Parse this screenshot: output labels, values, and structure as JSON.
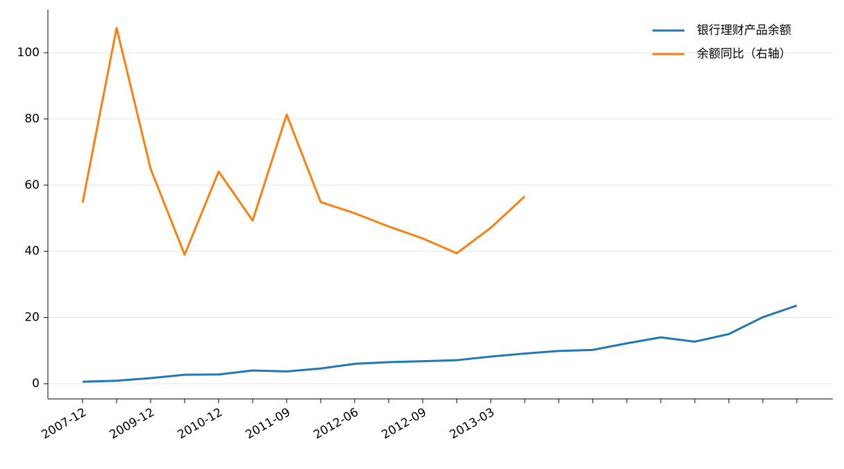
{
  "chart_data": {
    "type": "line",
    "categories": [
      "2007-12",
      null,
      "2009-12",
      null,
      "2010-12",
      null,
      "2011-09",
      null,
      "2012-06",
      null,
      "2012-09",
      null,
      "2013-03",
      null,
      null,
      null,
      null,
      null,
      null,
      null,
      null,
      null
    ],
    "series": [
      {
        "name": "银行理财产品余额",
        "color": "#1f77b4",
        "values": [
          0.6,
          0.9,
          1.7,
          2.7,
          2.8,
          4.0,
          3.7,
          4.6,
          6.0,
          6.5,
          6.8,
          7.1,
          8.2,
          9.1,
          9.9,
          10.2,
          12.2,
          14.0,
          12.7,
          15.0,
          20.1,
          23.6
        ]
      },
      {
        "name": "余额同比（右轴）",
        "color": "#ff7f0e",
        "values": [
          54.7,
          107.5,
          64.9,
          39.0,
          64.1,
          49.3,
          81.3,
          54.9,
          51.5,
          47.5,
          43.9,
          39.4,
          47.1,
          56.6,
          null,
          null,
          null,
          null,
          null,
          null,
          null,
          null
        ]
      }
    ],
    "ylim": [
      -4.6,
      113
    ],
    "yticks": [
      0,
      20,
      40,
      60,
      80,
      100
    ],
    "grid": true,
    "legend": "upper right"
  }
}
